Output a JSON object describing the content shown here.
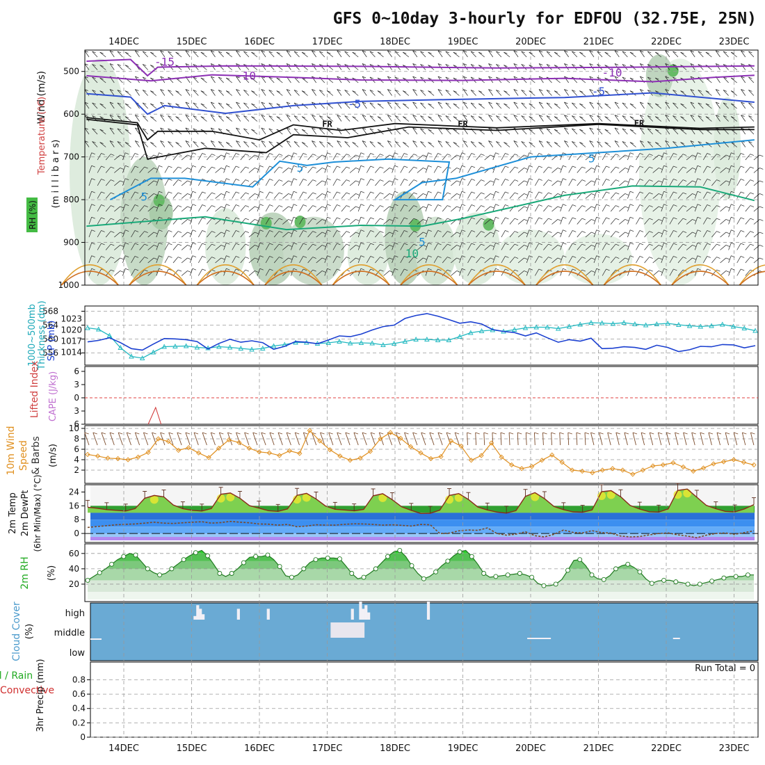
{
  "chart_data": {
    "type": "meteogram",
    "title": "GFS 0~10day 3-hourly for EDFOU (32.75E, 25N)",
    "date_labels": [
      "14DEC",
      "15DEC",
      "16DEC",
      "17DEC",
      "18DEC",
      "19DEC",
      "20DEC",
      "21DEC",
      "22DEC",
      "23DEC"
    ],
    "panels": {
      "upper_air": {
        "ylabel_lines": [
          "Wind (m/s)",
          "Temperature (°C)",
          "RH (%)"
        ],
        "axis_unit": "(m i l l i b a r s)",
        "pressure_ticks": [
          500,
          600,
          700,
          800,
          900,
          1000
        ],
        "ylim": [
          450,
          1000
        ],
        "isotherm_labels": [
          {
            "text": "-15",
            "t": 0.6,
            "p": 487
          },
          {
            "text": "-10",
            "t": 1.8,
            "p": 519
          },
          {
            "text": "-10",
            "t": 7.2,
            "p": 512
          },
          {
            "text": "-5",
            "t": 3.4,
            "p": 585
          },
          {
            "text": "-5",
            "t": 7.0,
            "p": 556
          },
          {
            "text": "FR",
            "t": 3.0,
            "p": 630
          },
          {
            "text": "FR",
            "t": 5.0,
            "p": 630
          },
          {
            "text": "FR",
            "t": 7.6,
            "p": 628
          },
          {
            "text": "5",
            "t": 0.3,
            "p": 802
          },
          {
            "text": "5",
            "t": 2.6,
            "p": 735
          },
          {
            "text": "5",
            "t": 4.4,
            "p": 908
          },
          {
            "text": "5",
            "t": 6.9,
            "p": 713
          },
          {
            "text": "10",
            "t": 4.25,
            "p": 935
          }
        ]
      },
      "pressure": {
        "ylabel_lines": [
          "1000~500mb",
          "Thickness (dm)",
          "SLP (mb)"
        ],
        "thickness_ticks": [
          556,
          560,
          564,
          568
        ],
        "slp_ticks": [
          1014,
          1017,
          1020,
          1023
        ],
        "thickness_dm": [
          563.2,
          562.8,
          561.0,
          557.5,
          555.0,
          554.5,
          556.2,
          557.8,
          557.9,
          558.0,
          557.6,
          557.4,
          557.8,
          557.6,
          557.3,
          557.0,
          557.3,
          558.0,
          558.4,
          559.0,
          559.0,
          558.7,
          558.9,
          559.3,
          558.8,
          558.9,
          558.8,
          558.3,
          558.7,
          559.3,
          559.9,
          559.9,
          559.7,
          559.7,
          560.7,
          561.8,
          562.3,
          562.6,
          562.2,
          562.7,
          563.2,
          563.4,
          563.4,
          563.0,
          563.6,
          564.2,
          564.7,
          564.6,
          564.4,
          564.7,
          564.3,
          564.0,
          564.3,
          564.5,
          564.1,
          563.8,
          563.6,
          563.8,
          564.2,
          563.6,
          563.1,
          562.4
        ],
        "slp_mb": [
          1016.8,
          1017.2,
          1017.9,
          1016.6,
          1015.0,
          1014.6,
          1016.2,
          1017.7,
          1017.6,
          1017.4,
          1016.9,
          1014.9,
          1016.4,
          1017.5,
          1016.7,
          1017.1,
          1016.6,
          1014.8,
          1015.6,
          1016.9,
          1016.7,
          1016.3,
          1017.3,
          1018.4,
          1018.2,
          1018.9,
          1020.0,
          1020.9,
          1021.3,
          1023.1,
          1023.9,
          1024.4,
          1023.7,
          1022.8,
          1021.8,
          1022.2,
          1021.6,
          1020.1,
          1019.6,
          1019.3,
          1018.4,
          1019.2,
          1017.9,
          1016.7,
          1017.4,
          1017.0,
          1017.8,
          1015.0,
          1015.1,
          1015.5,
          1015.3,
          1014.8,
          1015.9,
          1015.3,
          1014.2,
          1014.7,
          1015.6,
          1015.5,
          1016.1,
          1016.0,
          1015.2,
          1015.8
        ]
      },
      "instability": {
        "ylabel_lines": [
          "Lifted Index",
          "CAPE (J/kg)"
        ],
        "li_ticks": [
          -6,
          -3,
          0,
          3,
          6
        ],
        "li_ylim": [
          -6,
          6
        ],
        "cape_spike": {
          "start_day": 0.36,
          "peak_day": 0.47,
          "end_day": 0.55,
          "li_value": 2.2
        }
      },
      "wind10m": {
        "ylabel_lines": [
          "10m Wind",
          "Speed",
          "& Barbs",
          "(m/s)"
        ],
        "ticks": [
          2,
          4,
          6,
          8,
          10
        ],
        "ylim": [
          0,
          10
        ],
        "speed_ms": [
          5.0,
          4.7,
          4.3,
          4.2,
          4.0,
          4.5,
          5.4,
          8.0,
          7.5,
          5.8,
          6.3,
          5.3,
          4.4,
          6.2,
          7.8,
          7.3,
          6.2,
          5.5,
          5.3,
          4.8,
          5.7,
          5.2,
          9.6,
          7.6,
          5.9,
          4.7,
          3.9,
          4.3,
          5.6,
          8.0,
          9.2,
          8.1,
          6.5,
          5.3,
          4.2,
          4.6,
          7.6,
          6.6,
          3.9,
          4.8,
          7.2,
          4.5,
          3.0,
          2.3,
          2.7,
          3.9,
          4.9,
          3.5,
          2.0,
          1.8,
          1.5,
          2.0,
          2.3,
          2.0,
          1.2,
          2.0,
          2.8,
          3.0,
          3.4,
          2.6,
          1.8,
          2.4,
          3.2,
          3.6,
          4.0,
          3.5,
          3.0
        ]
      },
      "temperature": {
        "ylabel_lines": [
          "2m Temp",
          "2m DewPt",
          "(6hr Min/Max) (°C)"
        ],
        "ticks": [
          0,
          8,
          16,
          24
        ],
        "ylim": [
          -4,
          27
        ],
        "temp_c": [
          15.2,
          14.6,
          13.8,
          13.4,
          13.0,
          14.4,
          20.4,
          22.0,
          21.2,
          16.5,
          14.3,
          13.4,
          13.0,
          14.4,
          22.7,
          23.4,
          20.4,
          16.1,
          14.7,
          13.2,
          12.8,
          14.2,
          22.1,
          23.2,
          20.0,
          15.9,
          14.0,
          13.6,
          13.1,
          13.9,
          21.8,
          23.0,
          19.6,
          15.4,
          13.4,
          11.6,
          11.7,
          13.5,
          22.0,
          23.1,
          19.7,
          15.3,
          13.6,
          12.4,
          11.8,
          13.2,
          21.5,
          23.6,
          20.2,
          15.6,
          13.8,
          12.5,
          12.3,
          13.6,
          24.2,
          24.8,
          21.3,
          16.2,
          14.1,
          12.6,
          12.4,
          14.2,
          24.9,
          25.7,
          21.0,
          16.3,
          14.3,
          12.8,
          12.5,
          14.2,
          16.7
        ],
        "dewpt_c": [
          3.5,
          4.0,
          4.5,
          5.0,
          5.3,
          5.5,
          6.0,
          6.5,
          6.0,
          5.8,
          6.2,
          6.5,
          6.8,
          6.0,
          6.3,
          7.0,
          6.5,
          6.2,
          5.5,
          5.4,
          4.8,
          5.2,
          3.9,
          4.3,
          5.0,
          4.8,
          4.8,
          5.3,
          5.6,
          5.5,
          5.2,
          4.8,
          5.0,
          4.7,
          4.3,
          5.2,
          5.0,
          0.0,
          0.2,
          1.5,
          2.0,
          1.8,
          3.2,
          0.0,
          -1.0,
          -0.4,
          1.0,
          -1.3,
          -2.0,
          -0.5,
          2.0,
          0.6,
          0.3,
          1.6,
          0.5,
          0.2,
          -1.5,
          -2.0,
          -1.8,
          -0.8,
          0.0,
          0.3,
          -0.8,
          -1.5,
          -2.5,
          -1.0,
          0.0,
          0.3,
          -0.5,
          0.5,
          1.5
        ]
      },
      "rh2m": {
        "ylabel_lines": [
          "2m RH",
          "(%)"
        ],
        "ticks": [
          20,
          40,
          60
        ],
        "ylim": [
          0,
          68
        ],
        "rh_pct": [
          25,
          30,
          35,
          40,
          46,
          52,
          56,
          60,
          58,
          49,
          40,
          35,
          32,
          34,
          40,
          46,
          52,
          57,
          61,
          64,
          57,
          46,
          34,
          30,
          34,
          40,
          48,
          55,
          56,
          56,
          58,
          52,
          43,
          31,
          29,
          32,
          40,
          48,
          52,
          54,
          54,
          54,
          53,
          44,
          34,
          27,
          29,
          34,
          40,
          48,
          56,
          62,
          64,
          56,
          44,
          34,
          27,
          30,
          36,
          44,
          50,
          57,
          62,
          64,
          56,
          46,
          34,
          29,
          30,
          31,
          32,
          33,
          34,
          32,
          29,
          21,
          18,
          18,
          20,
          26,
          38,
          51,
          52,
          44,
          32,
          27,
          26,
          31,
          40,
          44,
          46,
          42,
          36,
          27,
          21,
          24,
          25,
          25,
          23,
          22,
          20,
          18,
          20,
          22,
          24,
          26,
          28,
          30,
          30,
          30,
          32,
          32
        ]
      },
      "cloud_cover": {
        "ylabel_lines": [
          "Cloud Cover",
          "(%)"
        ],
        "levels": [
          "high",
          "middle",
          "low"
        ],
        "high_pct": [
          0,
          0,
          0,
          0,
          0,
          0,
          0,
          0,
          0,
          0,
          0,
          0,
          0,
          0,
          0,
          0,
          0,
          0,
          0,
          0,
          0,
          0,
          0,
          0,
          0,
          0,
          0,
          0,
          0,
          0,
          0,
          0,
          0,
          0,
          0,
          0,
          0,
          0,
          20,
          80,
          60,
          30,
          0,
          0,
          0,
          0,
          0,
          0,
          0,
          0,
          0,
          0,
          0,
          0,
          60,
          0,
          0,
          0,
          0,
          0,
          0,
          0,
          0,
          0,
          0,
          60,
          0,
          0,
          0,
          0,
          0,
          0,
          0,
          0,
          0,
          0,
          0,
          0,
          0,
          0,
          0,
          0,
          0,
          0,
          0,
          0,
          0,
          0,
          0,
          0,
          0,
          0,
          0,
          0,
          0,
          0,
          60,
          0,
          0,
          100,
          60,
          80,
          40,
          0,
          0,
          0,
          0,
          0,
          0,
          0,
          0,
          0,
          0,
          0,
          0,
          0,
          0,
          0,
          0,
          0,
          0,
          0,
          0,
          0,
          100,
          0,
          0,
          0,
          0,
          0,
          0,
          0,
          0,
          0,
          0,
          0,
          0,
          0,
          0,
          0,
          0,
          0,
          0,
          0,
          0,
          0,
          0,
          0,
          0,
          0,
          0,
          0,
          0,
          0,
          0,
          0,
          0,
          0,
          0,
          0,
          0,
          0,
          0,
          0,
          0,
          0,
          0,
          0,
          0,
          0,
          0,
          0,
          0,
          0,
          0,
          0,
          0,
          0,
          0,
          0,
          0,
          0,
          0,
          0,
          0,
          0,
          0,
          0,
          0,
          0,
          0,
          0,
          0,
          0,
          0,
          0,
          0,
          0,
          0,
          0,
          0,
          0,
          0,
          0,
          0,
          0,
          0,
          0,
          0,
          0,
          0,
          0,
          0,
          0,
          0,
          0,
          0,
          0,
          0,
          0,
          0,
          0,
          0,
          0,
          0,
          0,
          0,
          0,
          0,
          0,
          0,
          0,
          0,
          0,
          0,
          0,
          0,
          0,
          0,
          0,
          0,
          0,
          0,
          0,
          0,
          0
        ],
        "run_total": "Run Total = 0"
      },
      "precip": {
        "ylabel_lines": [
          "Total / Rain",
          "Convective",
          "3hr Precip (mm)"
        ],
        "ticks": [
          0,
          0.2,
          0.4,
          0.6,
          0.8
        ],
        "ylim": [
          0,
          1
        ],
        "precip_mm": [
          0,
          0,
          0,
          0,
          0,
          0,
          0,
          0,
          0,
          0
        ]
      }
    }
  }
}
